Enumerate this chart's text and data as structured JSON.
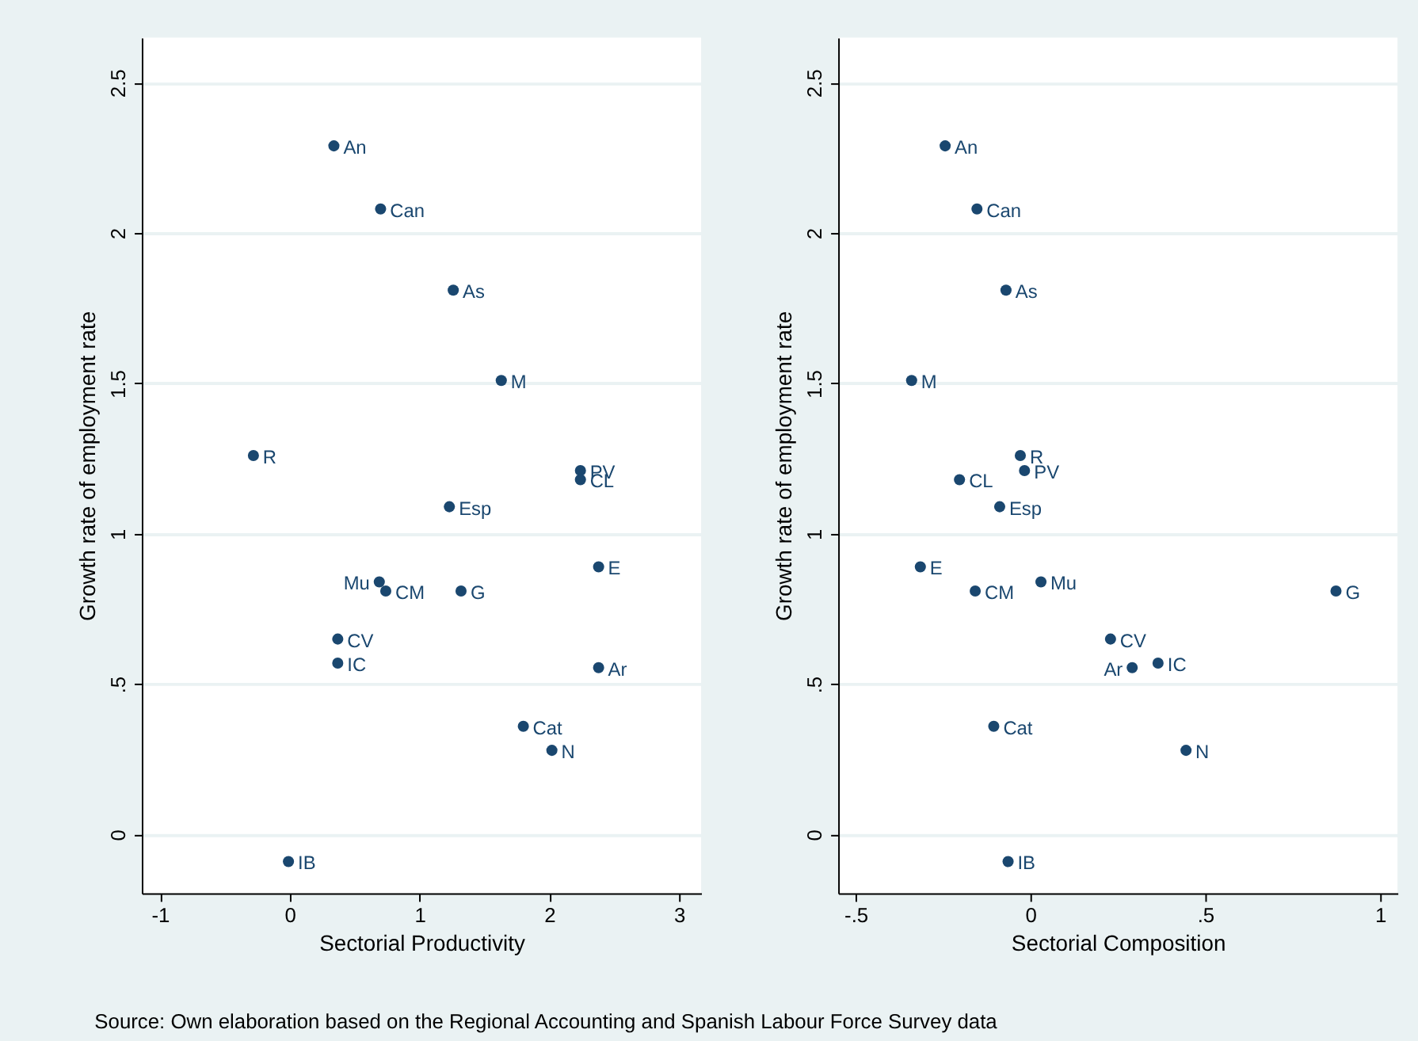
{
  "chart_data": [
    {
      "type": "scatter",
      "xlabel": "Sectorial Productivity",
      "ylabel": "Growth rate of employment rate",
      "color": "#1a476f",
      "marker": "circle",
      "grid": "y",
      "xlim": [
        -1.14,
        3.17
      ],
      "ylim": [
        -0.195,
        2.65
      ],
      "xticks": [
        -1,
        0,
        1,
        2,
        3
      ],
      "yticks": [
        0,
        {
          "value": 0.5,
          "label": ".5"
        },
        1,
        1.5,
        2,
        2.5
      ],
      "x": [
        0.34,
        0.7,
        1.26,
        1.63,
        -0.28,
        2.24,
        2.24,
        1.23,
        2.38,
        0.69,
        0.74,
        1.32,
        0.37,
        0.37,
        2.38,
        1.8,
        2.02,
        -0.01
      ],
      "values": [
        2.29,
        2.08,
        1.81,
        1.51,
        1.26,
        1.21,
        1.18,
        1.09,
        0.89,
        0.84,
        0.81,
        0.81,
        0.65,
        0.57,
        0.555,
        0.36,
        0.28,
        -0.09
      ],
      "annotations": [
        {
          "text": "An",
          "x": 0.34,
          "y": 2.29
        },
        {
          "text": "Can",
          "x": 0.7,
          "y": 2.08
        },
        {
          "text": "As",
          "x": 1.26,
          "y": 1.81
        },
        {
          "text": "M",
          "x": 1.63,
          "y": 1.51
        },
        {
          "text": "R",
          "x": -0.28,
          "y": 1.26
        },
        {
          "text": "PV",
          "x": 2.24,
          "y": 1.21
        },
        {
          "text": "CL",
          "x": 2.24,
          "y": 1.18
        },
        {
          "text": "Esp",
          "x": 1.23,
          "y": 1.09
        },
        {
          "text": "E",
          "x": 2.38,
          "y": 0.89
        },
        {
          "text": "Mu",
          "x": 0.69,
          "y": 0.84
        },
        {
          "text": "CM",
          "x": 0.74,
          "y": 0.81
        },
        {
          "text": "G",
          "x": 1.32,
          "y": 0.81
        },
        {
          "text": "CV",
          "x": 0.37,
          "y": 0.65
        },
        {
          "text": "IC",
          "x": 0.37,
          "y": 0.57
        },
        {
          "text": "Ar",
          "x": 2.38,
          "y": 0.555
        },
        {
          "text": "Cat",
          "x": 1.8,
          "y": 0.36
        },
        {
          "text": "N",
          "x": 2.02,
          "y": 0.28
        },
        {
          "text": "IB",
          "x": -0.01,
          "y": -0.09
        },
        "Source: Own elaboration based on the Regional Accounting and Spanish Labour Force Survey data"
      ]
    },
    {
      "type": "scatter",
      "xlabel": "Sectorial Composition",
      "ylabel": "Growth rate of employment rate",
      "color": "#1a476f",
      "marker": "circle",
      "grid": "y",
      "xlim": [
        -0.55,
        1.05
      ],
      "ylim": [
        -0.195,
        2.65
      ],
      "xticks": [
        {
          "value": -0.5,
          "label": "-.5"
        },
        0,
        {
          "value": 0.5,
          "label": ".5"
        },
        1
      ],
      "yticks": [
        0,
        {
          "value": 0.5,
          "label": ".5"
        },
        1,
        1.5,
        2,
        2.5
      ],
      "x": [
        -0.244,
        -0.153,
        -0.07,
        -0.34,
        -0.029,
        -0.017,
        -0.203,
        -0.088,
        -0.315,
        0.03,
        -0.158,
        0.874,
        0.229,
        0.365,
        0.291,
        -0.105,
        0.445,
        -0.064
      ],
      "values": [
        2.29,
        2.08,
        1.81,
        1.51,
        1.26,
        1.21,
        1.18,
        1.09,
        0.89,
        0.84,
        0.81,
        0.81,
        0.65,
        0.57,
        0.555,
        0.36,
        0.28,
        -0.09
      ],
      "annotations": [
        {
          "text": "An",
          "x": -0.244,
          "y": 2.29
        },
        {
          "text": "Can",
          "x": -0.153,
          "y": 2.08
        },
        {
          "text": "As",
          "x": -0.07,
          "y": 1.81
        },
        {
          "text": "M",
          "x": -0.34,
          "y": 1.51
        },
        {
          "text": "R",
          "x": -0.029,
          "y": 1.26
        },
        {
          "text": "PV",
          "x": -0.017,
          "y": 1.21
        },
        {
          "text": "CL",
          "x": -0.203,
          "y": 1.18
        },
        {
          "text": "Esp",
          "x": -0.088,
          "y": 1.09
        },
        {
          "text": "E",
          "x": -0.315,
          "y": 0.89
        },
        {
          "text": "Mu",
          "x": 0.03,
          "y": 0.84
        },
        {
          "text": "CM",
          "x": -0.158,
          "y": 0.81
        },
        {
          "text": "G",
          "x": 0.874,
          "y": 0.81
        },
        {
          "text": "CV",
          "x": 0.229,
          "y": 0.65
        },
        {
          "text": "IC",
          "x": 0.365,
          "y": 0.57
        },
        {
          "text": "Ar",
          "x": 0.291,
          "y": 0.555
        },
        {
          "text": "Cat",
          "x": -0.105,
          "y": 0.36
        },
        {
          "text": "N",
          "x": 0.445,
          "y": 0.28
        },
        {
          "text": "IB",
          "x": -0.064,
          "y": -0.09
        }
      ]
    }
  ]
}
